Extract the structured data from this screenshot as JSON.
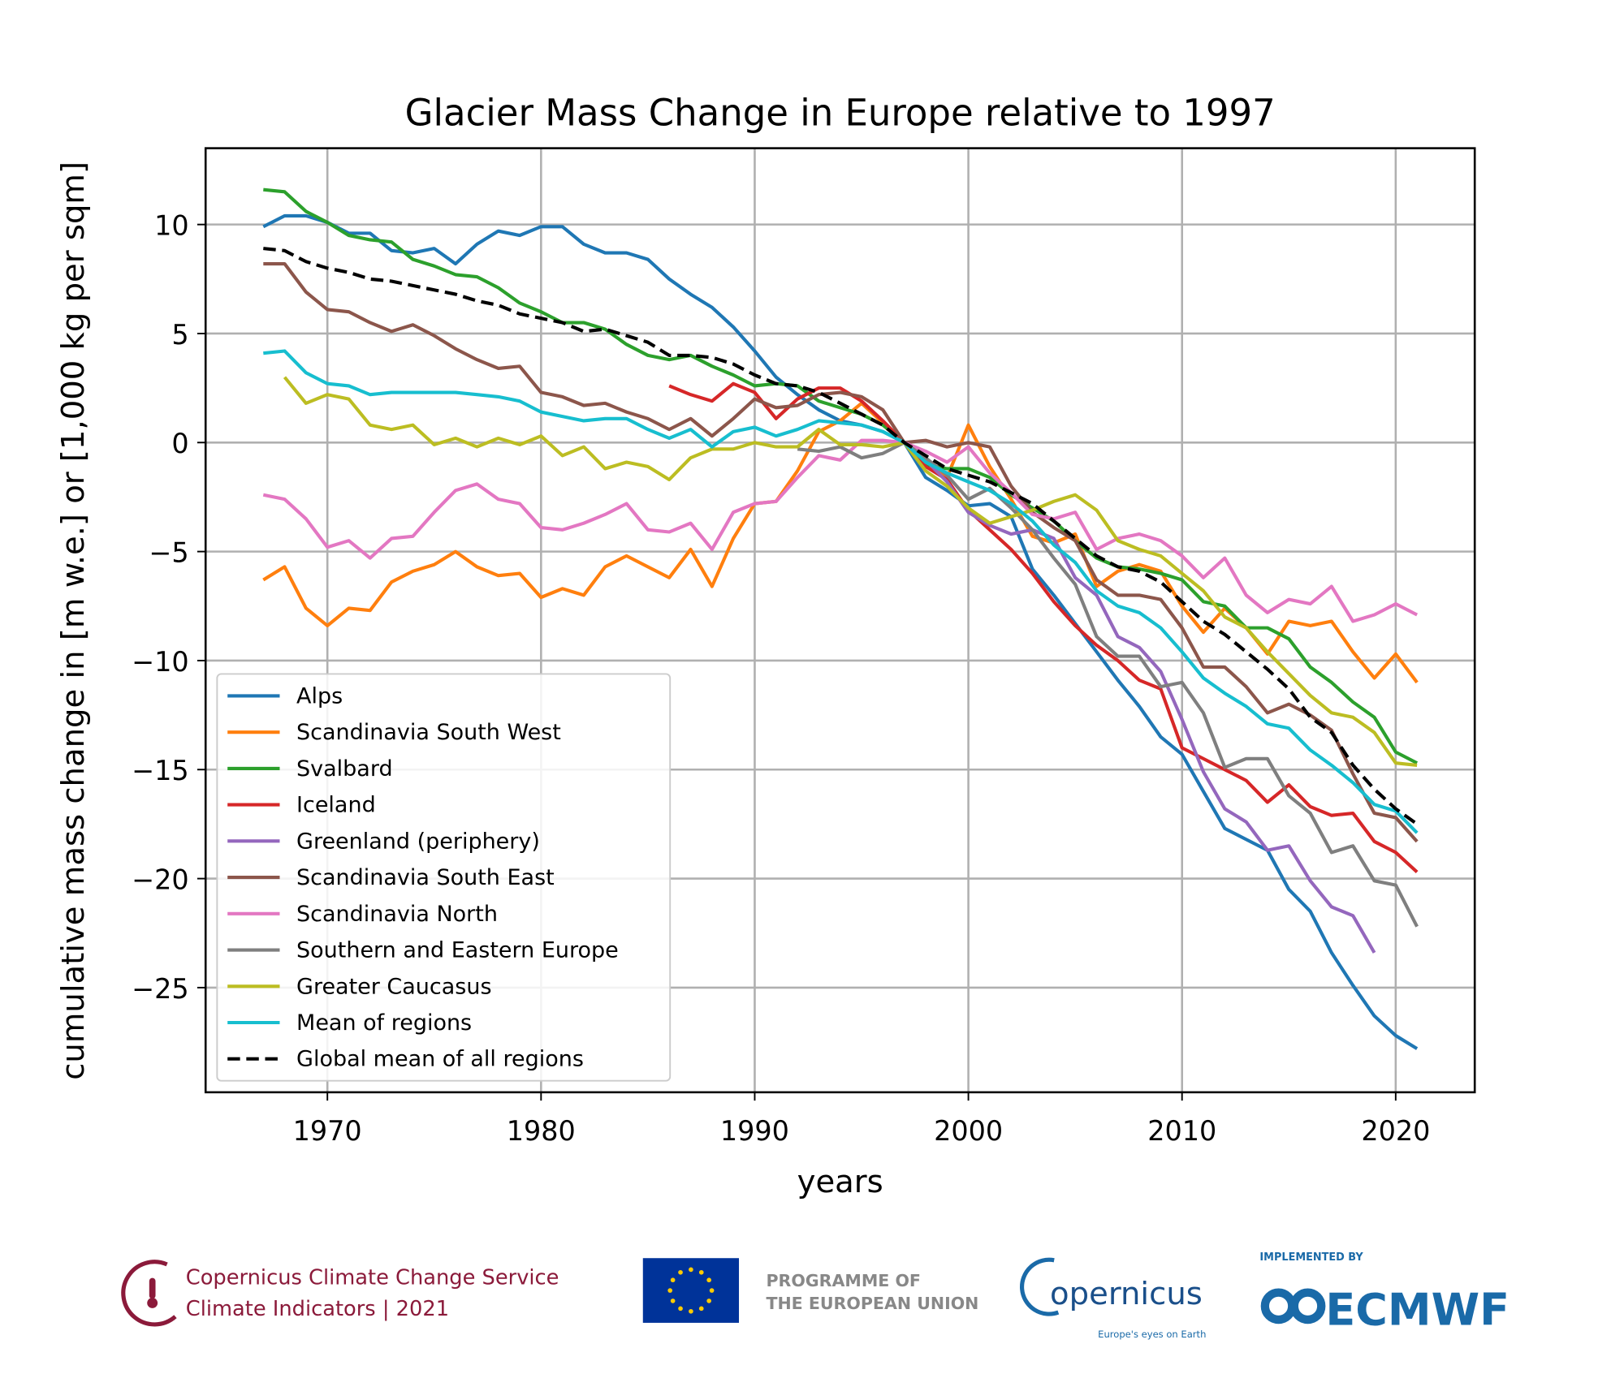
{
  "chart_data": {
    "type": "line",
    "title": "Glacier Mass Change in Europe relative to 1997",
    "xlabel": "years",
    "ylabel": "cumulative mass change in [m w.e.] or [1,000 kg per sqm]",
    "xlim": [
      1964.3,
      2023.7
    ],
    "ylim": [
      -29.8,
      13.5
    ],
    "xticks": [
      1970,
      1980,
      1990,
      2000,
      2010,
      2020
    ],
    "yticks": [
      10,
      5,
      0,
      -5,
      -10,
      -15,
      -20,
      -25
    ],
    "ytick_labels": [
      "10",
      "5",
      "0",
      "−5",
      "−10",
      "−15",
      "−20",
      "−25"
    ],
    "grid": true,
    "legend_position": "lower-left",
    "series": [
      {
        "name": "Alps",
        "color": "#1f77b4",
        "start": 1967,
        "values": [
          9.9,
          10.4,
          10.4,
          10.1,
          9.6,
          9.6,
          8.8,
          8.7,
          8.9,
          8.2,
          9.1,
          9.7,
          9.5,
          9.9,
          9.9,
          9.1,
          8.7,
          8.7,
          8.4,
          7.5,
          6.8,
          6.2,
          5.3,
          4.2,
          3.0,
          2.2,
          1.5,
          1.0,
          0.8,
          0.5,
          0,
          -1.6,
          -2.2,
          -2.9,
          -2.8,
          -3.4,
          -5.8,
          -7.0,
          -8.3,
          -9.6,
          -10.9,
          -12.1,
          -13.5,
          -14.3,
          -16.0,
          -17.7,
          -18.2,
          -18.7,
          -20.5,
          -21.5,
          -23.4,
          -24.9,
          -26.3,
          -27.2,
          -27.8
        ]
      },
      {
        "name": "Scandinavia South West",
        "color": "#ff7f0e",
        "start": 1967,
        "values": [
          -6.3,
          -5.7,
          -7.6,
          -8.4,
          -7.6,
          -7.7,
          -6.4,
          -5.9,
          -5.6,
          -5.0,
          -5.7,
          -6.1,
          -6.0,
          -7.1,
          -6.7,
          -7.0,
          -5.7,
          -5.2,
          -5.7,
          -6.2,
          -4.9,
          -6.6,
          -4.4,
          -2.8,
          -2.7,
          -1.3,
          0.5,
          1.0,
          1.8,
          0.9,
          0,
          -1.0,
          -1.6,
          0.8,
          -1.1,
          -2.6,
          -4.3,
          -4.6,
          -4.2,
          -6.6,
          -5.9,
          -5.6,
          -5.9,
          -7.5,
          -8.7,
          -7.6,
          -8.5,
          -9.7,
          -8.2,
          -8.4,
          -8.2,
          -9.6,
          -10.8,
          -9.7,
          -11.0
        ]
      },
      {
        "name": "Svalbard",
        "color": "#2ca02c",
        "start": 1967,
        "values": [
          11.6,
          11.5,
          10.6,
          10.1,
          9.5,
          9.3,
          9.2,
          8.4,
          8.1,
          7.7,
          7.6,
          7.1,
          6.4,
          6.0,
          5.5,
          5.5,
          5.2,
          4.5,
          4.0,
          3.8,
          4.0,
          3.5,
          3.1,
          2.6,
          2.7,
          2.6,
          1.9,
          1.6,
          1.3,
          0.8,
          0,
          -1.0,
          -1.2,
          -1.2,
          -1.6,
          -2.4,
          -3.0,
          -3.6,
          -4.5,
          -5.3,
          -5.7,
          -5.8,
          -6.0,
          -6.3,
          -7.3,
          -7.5,
          -8.5,
          -8.5,
          -9.0,
          -10.3,
          -11.0,
          -11.9,
          -12.6,
          -14.2,
          -14.7
        ]
      },
      {
        "name": "Iceland",
        "color": "#d62728",
        "start": 1986,
        "values": [
          2.6,
          2.2,
          1.9,
          2.7,
          2.3,
          1.1,
          2.0,
          2.5,
          2.5,
          1.9,
          1.0,
          0,
          -1.1,
          -1.7,
          -3.1,
          -4.0,
          -4.9,
          -6.0,
          -7.3,
          -8.4,
          -9.3,
          -10.0,
          -10.9,
          -11.3,
          -14.0,
          -14.5,
          -15.0,
          -15.5,
          -16.5,
          -15.7,
          -16.7,
          -17.1,
          -17.0,
          -18.3,
          -18.8,
          -19.7
        ]
      },
      {
        "name": "Greenland (periphery)",
        "color": "#9467bd",
        "start": 1997,
        "values": [
          0,
          -0.8,
          -1.8,
          -3.2,
          -3.8,
          -4.2,
          -4.0,
          -4.4,
          -6.2,
          -7.0,
          -8.9,
          -9.4,
          -10.5,
          -12.7,
          -15.1,
          -16.8,
          -17.4,
          -18.7,
          -18.5,
          -20.1,
          -21.3,
          -21.7,
          -23.4
        ]
      },
      {
        "name": "Scandinavia South East",
        "color": "#8c564b",
        "start": 1967,
        "values": [
          8.2,
          8.2,
          6.9,
          6.1,
          6.0,
          5.5,
          5.1,
          5.4,
          4.9,
          4.3,
          3.8,
          3.4,
          3.5,
          2.3,
          2.1,
          1.7,
          1.8,
          1.4,
          1.1,
          0.6,
          1.1,
          0.3,
          1.1,
          2.0,
          1.6,
          1.7,
          2.2,
          2.3,
          2.1,
          1.5,
          0,
          0.1,
          -0.2,
          0,
          -0.2,
          -2.0,
          -3.2,
          -3.9,
          -4.5,
          -6.3,
          -7.0,
          -7.0,
          -7.2,
          -8.5,
          -10.3,
          -10.3,
          -11.2,
          -12.4,
          -12.0,
          -12.5,
          -13.2,
          -15.2,
          -17.0,
          -17.2,
          -18.3
        ]
      },
      {
        "name": "Scandinavia North",
        "color": "#e377c2",
        "start": 1967,
        "values": [
          -2.4,
          -2.6,
          -3.5,
          -4.8,
          -4.5,
          -5.3,
          -4.4,
          -4.3,
          -3.2,
          -2.2,
          -1.9,
          -2.6,
          -2.8,
          -3.9,
          -4.0,
          -3.7,
          -3.3,
          -2.8,
          -4.0,
          -4.1,
          -3.7,
          -4.9,
          -3.2,
          -2.8,
          -2.7,
          -1.6,
          -0.6,
          -0.8,
          0.1,
          0.1,
          0,
          -0.4,
          -0.9,
          -0.2,
          -1.4,
          -2.3,
          -3.3,
          -3.5,
          -3.2,
          -4.9,
          -4.4,
          -4.2,
          -4.5,
          -5.2,
          -6.2,
          -5.3,
          -7.0,
          -7.8,
          -7.2,
          -7.4,
          -6.6,
          -8.2,
          -7.9,
          -7.4,
          -7.9
        ]
      },
      {
        "name": "Southern and Eastern Europe",
        "color": "#7f7f7f",
        "start": 1992,
        "values": [
          -0.3,
          -0.4,
          -0.2,
          -0.7,
          -0.5,
          0,
          -0.7,
          -1.5,
          -2.6,
          -2.1,
          -3.0,
          -4.0,
          -5.3,
          -6.5,
          -8.9,
          -9.8,
          -9.8,
          -11.2,
          -11.0,
          -12.4,
          -14.9,
          -14.5,
          -14.5,
          -16.2,
          -17.0,
          -18.8,
          -18.5,
          -20.1,
          -20.3,
          -22.2
        ]
      },
      {
        "name": "Greater Caucasus",
        "color": "#bcbd22",
        "start": 1968,
        "values": [
          3.0,
          1.8,
          2.2,
          2.0,
          0.8,
          0.6,
          0.8,
          -0.1,
          0.2,
          -0.2,
          0.2,
          -0.1,
          0.3,
          -0.6,
          -0.2,
          -1.2,
          -0.9,
          -1.1,
          -1.7,
          -0.7,
          -0.3,
          -0.3,
          0,
          -0.2,
          -0.2,
          0.6,
          -0.1,
          -0.1,
          -0.2,
          0,
          -1.3,
          -2.0,
          -3.0,
          -3.7,
          -3.4,
          -3.1,
          -2.7,
          -2.4,
          -3.1,
          -4.5,
          -4.9,
          -5.2,
          -6.0,
          -6.8,
          -8.0,
          -8.5,
          -9.6,
          -10.6,
          -11.6,
          -12.4,
          -12.6,
          -13.3,
          -14.7,
          -14.8
        ]
      },
      {
        "name": "Mean of regions",
        "color": "#17becf",
        "start": 1967,
        "values": [
          4.1,
          4.2,
          3.2,
          2.7,
          2.6,
          2.2,
          2.3,
          2.3,
          2.3,
          2.3,
          2.2,
          2.1,
          1.9,
          1.4,
          1.2,
          1.0,
          1.1,
          1.1,
          0.6,
          0.2,
          0.6,
          -0.2,
          0.5,
          0.7,
          0.3,
          0.6,
          1.0,
          0.9,
          0.8,
          0.5,
          0,
          -0.9,
          -1.4,
          -1.8,
          -2.2,
          -2.8,
          -3.6,
          -4.7,
          -5.5,
          -6.8,
          -7.5,
          -7.8,
          -8.5,
          -9.6,
          -10.8,
          -11.5,
          -12.1,
          -12.9,
          -13.1,
          -14.1,
          -14.8,
          -15.6,
          -16.6,
          -16.9,
          -17.9
        ]
      },
      {
        "name": "Global mean of all regions",
        "color": "#000000",
        "dashed": true,
        "start": 1967,
        "values": [
          8.9,
          8.8,
          8.3,
          8.0,
          7.8,
          7.5,
          7.4,
          7.2,
          7.0,
          6.8,
          6.5,
          6.3,
          5.9,
          5.7,
          5.5,
          5.1,
          5.2,
          4.9,
          4.6,
          4.0,
          4.0,
          3.9,
          3.6,
          3.1,
          2.7,
          2.6,
          2.3,
          1.8,
          1.3,
          0.8,
          0,
          -0.6,
          -1.2,
          -1.5,
          -1.8,
          -2.3,
          -2.8,
          -3.6,
          -4.4,
          -5.2,
          -5.7,
          -5.9,
          -6.4,
          -7.3,
          -8.2,
          -8.8,
          -9.6,
          -10.4,
          -11.3,
          -12.6,
          -13.3,
          -14.8,
          -15.9,
          -16.8,
          -17.5
        ]
      }
    ]
  },
  "footer": {
    "c3s_line1": "Copernicus Climate Change Service",
    "c3s_line2": "Climate Indicators | 2021",
    "c3s_color": "#8b1a3a",
    "eu_line1": "PROGRAMME OF",
    "eu_line2": "THE EUROPEAN UNION",
    "eu_flag_color": "#003399",
    "copernicus": "opernicus",
    "copernicus_tagline": "Europe's eyes on Earth",
    "ecmwf_top": "IMPLEMENTED BY",
    "ecmwf": "ECMWF",
    "ecmwf_color": "#1a6aa8"
  }
}
